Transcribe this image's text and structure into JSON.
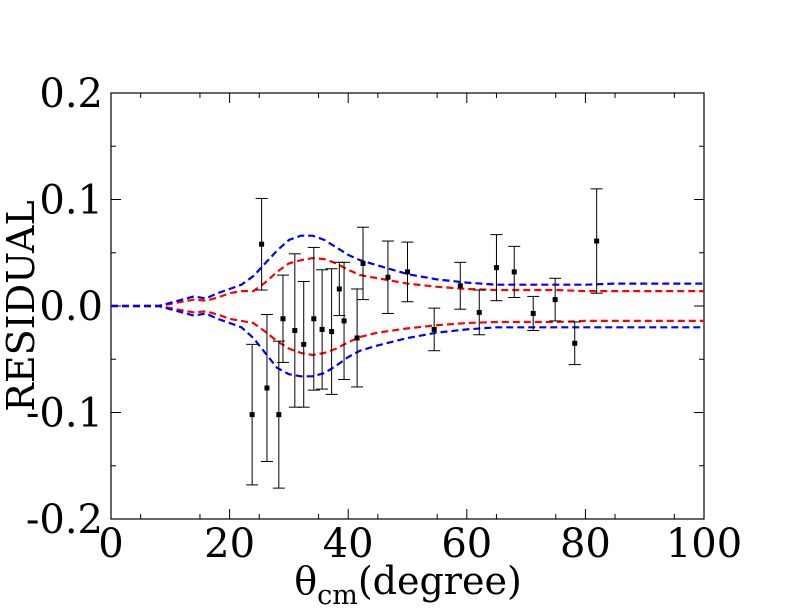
{
  "chart_data": {
    "type": "scatter",
    "title": "",
    "xlabel": "θ",
    "xlabel_sub": "cm",
    "xlabel_suffix": "(degree)",
    "ylabel": "RESIDUAL",
    "xlim": [
      0,
      100
    ],
    "ylim": [
      -0.2,
      0.2
    ],
    "grid": false,
    "x_ticks": [
      0,
      20,
      40,
      60,
      80,
      100
    ],
    "x_tick_labels": [
      "0",
      "20",
      "40",
      "60",
      "80",
      "100"
    ],
    "y_ticks": [
      -0.2,
      -0.1,
      0.0,
      0.1,
      0.2
    ],
    "y_tick_labels": [
      "-0.2",
      "-0.1",
      "0.0",
      "0.1",
      "0.2"
    ],
    "points": [
      {
        "x": 23.8,
        "y": -0.102,
        "err": 0.066
      },
      {
        "x": 25.4,
        "y": 0.058,
        "err": 0.043
      },
      {
        "x": 26.3,
        "y": -0.077,
        "err": 0.069
      },
      {
        "x": 28.3,
        "y": -0.102,
        "err": 0.069
      },
      {
        "x": 29.0,
        "y": -0.012,
        "err": 0.041
      },
      {
        "x": 31.0,
        "y": -0.023,
        "err": 0.072
      },
      {
        "x": 32.5,
        "y": -0.036,
        "err": 0.059
      },
      {
        "x": 34.2,
        "y": -0.012,
        "err": 0.067
      },
      {
        "x": 35.6,
        "y": -0.022,
        "err": 0.056
      },
      {
        "x": 37.2,
        "y": -0.024,
        "err": 0.059
      },
      {
        "x": 38.5,
        "y": 0.016,
        "err": 0.025
      },
      {
        "x": 39.3,
        "y": -0.014,
        "err": 0.055
      },
      {
        "x": 41.5,
        "y": -0.03,
        "err": 0.046
      },
      {
        "x": 42.5,
        "y": 0.04,
        "err": 0.034
      },
      {
        "x": 46.7,
        "y": 0.027,
        "err": 0.034
      },
      {
        "x": 50.0,
        "y": 0.032,
        "err": 0.028
      },
      {
        "x": 54.5,
        "y": -0.022,
        "err": 0.02
      },
      {
        "x": 58.9,
        "y": 0.019,
        "err": 0.022
      },
      {
        "x": 62.1,
        "y": -0.006,
        "err": 0.021
      },
      {
        "x": 65.0,
        "y": 0.036,
        "err": 0.031
      },
      {
        "x": 68.0,
        "y": 0.032,
        "err": 0.024
      },
      {
        "x": 71.2,
        "y": -0.007,
        "err": 0.016
      },
      {
        "x": 74.9,
        "y": 0.006,
        "err": 0.02
      },
      {
        "x": 78.2,
        "y": -0.035,
        "err": 0.02
      },
      {
        "x": 81.9,
        "y": 0.061,
        "err": 0.049
      }
    ],
    "series": [
      {
        "color": "#ff0000",
        "style": "dashed",
        "x": [
          0,
          5,
          8,
          10,
          12,
          14,
          16,
          18,
          20,
          22,
          24,
          26,
          28,
          30,
          32,
          34,
          36,
          38,
          40,
          42,
          45,
          50,
          55,
          60,
          65,
          70,
          75,
          80,
          85,
          90,
          95,
          100
        ],
        "upper": [
          0,
          0,
          0,
          0.002,
          0.004,
          0.006,
          0.005,
          0.008,
          0.012,
          0.014,
          0.014,
          0.022,
          0.032,
          0.04,
          0.043,
          0.045,
          0.044,
          0.04,
          0.034,
          0.029,
          0.026,
          0.021,
          0.018,
          0.016,
          0.015,
          0.015,
          0.015,
          0.014,
          0.014,
          0.014,
          0.014,
          0.014
        ],
        "lower": [
          0,
          0,
          0,
          -0.002,
          -0.004,
          -0.006,
          -0.005,
          -0.008,
          -0.012,
          -0.014,
          -0.016,
          -0.024,
          -0.033,
          -0.04,
          -0.044,
          -0.046,
          -0.044,
          -0.04,
          -0.034,
          -0.029,
          -0.025,
          -0.021,
          -0.018,
          -0.016,
          -0.015,
          -0.015,
          -0.015,
          -0.014,
          -0.014,
          -0.014,
          -0.014,
          -0.014
        ]
      },
      {
        "color": "#0000ff",
        "style": "dashed",
        "x": [
          0,
          5,
          8,
          10,
          12,
          14,
          16,
          18,
          20,
          22,
          24,
          26,
          28,
          30,
          32,
          34,
          36,
          38,
          40,
          42,
          45,
          50,
          55,
          60,
          65,
          70,
          75,
          80,
          85,
          90,
          95,
          100
        ],
        "upper": [
          0,
          0,
          0,
          0.003,
          0.006,
          0.009,
          0.007,
          0.012,
          0.016,
          0.02,
          0.028,
          0.04,
          0.052,
          0.062,
          0.066,
          0.066,
          0.062,
          0.055,
          0.048,
          0.043,
          0.038,
          0.03,
          0.025,
          0.022,
          0.02,
          0.02,
          0.02,
          0.02,
          0.021,
          0.021,
          0.021,
          0.021
        ],
        "lower": [
          0,
          0,
          0,
          -0.003,
          -0.006,
          -0.009,
          -0.007,
          -0.012,
          -0.016,
          -0.02,
          -0.03,
          -0.044,
          -0.058,
          -0.064,
          -0.066,
          -0.066,
          -0.063,
          -0.056,
          -0.048,
          -0.042,
          -0.037,
          -0.03,
          -0.025,
          -0.022,
          -0.02,
          -0.02,
          -0.02,
          -0.02,
          -0.02,
          -0.02,
          -0.02,
          -0.02
        ]
      }
    ]
  }
}
